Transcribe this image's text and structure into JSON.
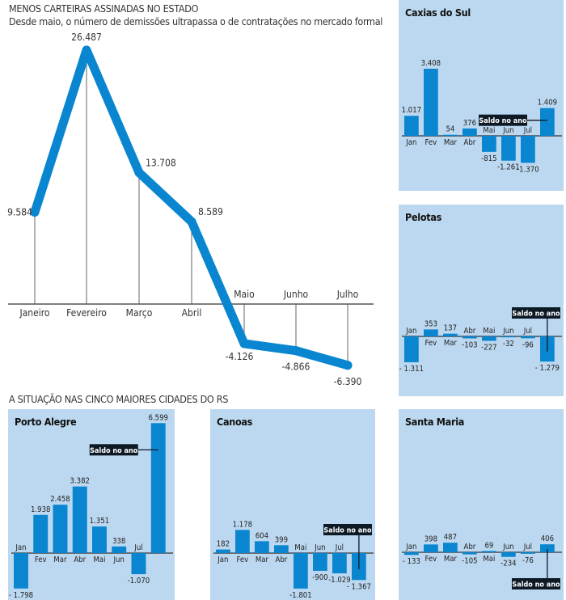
{
  "header": {
    "title": "MENOS CARTEIRAS ASSINADAS NO ESTADO",
    "subtitle": "Desde maio, o número de demissões ultrapassa o de contratações no mercado formal"
  },
  "section_title": "A SITUAÇÃO NAS CINCO MAIORES CIDADES DO RS",
  "colors": {
    "bar": "#0a86d0",
    "line": "#0a86d0",
    "panel": "#bcd8f0",
    "label_box": "#0d1a26"
  },
  "chart_data": [
    {
      "type": "line",
      "title": "MENOS CARTEIRAS ASSINADAS NO ESTADO",
      "subtitle": "Desde maio, o número de demissões ultrapassa o de contratações no mercado formal",
      "categories": [
        "Janeiro",
        "Fevereiro",
        "Março",
        "Abril",
        "Maio",
        "Junho",
        "Julho"
      ],
      "values": [
        9584,
        26487,
        13708,
        8589,
        -4126,
        -4866,
        -6390
      ],
      "value_labels": [
        "9.584",
        "26.487",
        "13.708",
        "8.589",
        "-4.126",
        "-4.866",
        "-6.390"
      ],
      "xlabel": "",
      "ylabel": "",
      "grid": false
    },
    {
      "type": "bar",
      "title": "Caxias do Sul",
      "categories": [
        "Jan",
        "Fev",
        "Mar",
        "Abr",
        "Mai",
        "Jun",
        "Jul",
        ""
      ],
      "values": [
        1017,
        3408,
        54,
        376,
        -815,
        -1261,
        -1370,
        1409
      ],
      "value_labels": [
        "1.017",
        "3.408",
        "54",
        "376",
        "-815",
        "-1.261",
        "-1.370",
        "1.409"
      ],
      "annotation": "Saldo no ano"
    },
    {
      "type": "bar",
      "title": "Pelotas",
      "categories": [
        "Jan",
        "Fev",
        "Mar",
        "Abr",
        "Mai",
        "Jun",
        "Jul",
        ""
      ],
      "values": [
        -1311,
        353,
        137,
        -103,
        -227,
        -32,
        -96,
        -1279
      ],
      "value_labels": [
        "- 1.311",
        "353",
        "137",
        "-103",
        "-227",
        "-32",
        "-96",
        "- 1.279"
      ],
      "annotation": "Saldo no ano"
    },
    {
      "type": "bar",
      "title": "Porto Alegre",
      "categories": [
        "Jan",
        "Fev",
        "Mar",
        "Abr",
        "Mai",
        "Jun",
        "Jul",
        ""
      ],
      "values": [
        -1798,
        1938,
        2458,
        3382,
        1351,
        338,
        -1070,
        6599
      ],
      "value_labels": [
        "- 1.798",
        "1.938",
        "2.458",
        "3.382",
        "1.351",
        "338",
        "-1.070",
        "6.599"
      ],
      "annotation": "Saldo no ano"
    },
    {
      "type": "bar",
      "title": "Canoas",
      "categories": [
        "Jan",
        "Fev",
        "Mar",
        "Abr",
        "Mai",
        "Jun",
        "Jul",
        ""
      ],
      "values": [
        182,
        1178,
        604,
        399,
        -1801,
        -900,
        -1029,
        -1367
      ],
      "value_labels": [
        "182",
        "1.178",
        "604",
        "399",
        "-1.801",
        "-900",
        "-1.029",
        "- 1.367"
      ],
      "annotation": "Saldo no ano"
    },
    {
      "type": "bar",
      "title": "Santa Maria",
      "categories": [
        "Jan",
        "Fev",
        "Mar",
        "Abr",
        "Mai",
        "Jun",
        "Jul",
        ""
      ],
      "values": [
        -133,
        398,
        487,
        -105,
        69,
        -234,
        -76,
        406
      ],
      "value_labels": [
        "- 133",
        "398",
        "487",
        "-105",
        "69",
        "-234",
        "-76",
        "406"
      ],
      "annotation": "Saldo no ano"
    }
  ]
}
